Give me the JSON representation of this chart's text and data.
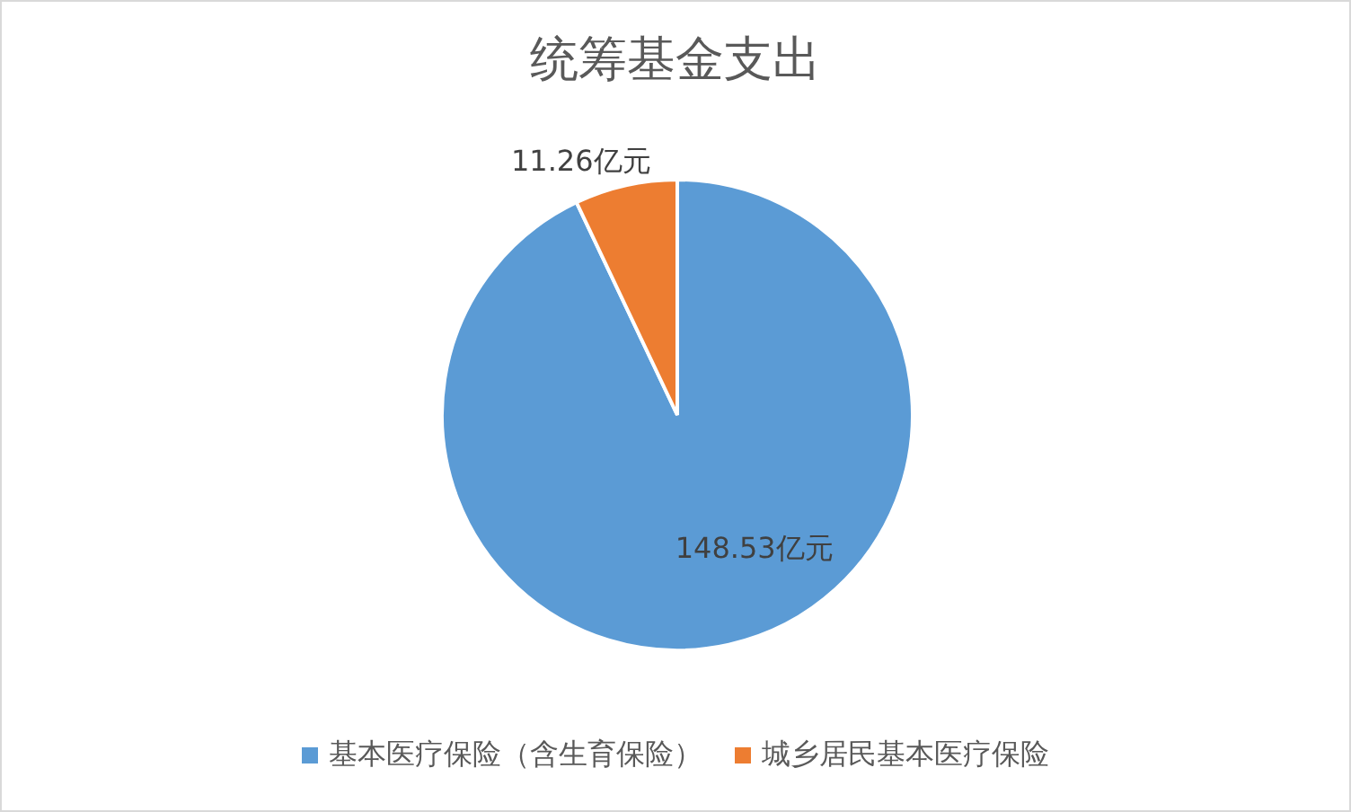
{
  "chart_data": {
    "type": "pie",
    "title": "统筹基金支出",
    "categories": [
      "基本医疗保险（含生育保险）",
      "城乡居民基本医疗保险"
    ],
    "values": [
      148.53,
      11.26
    ],
    "colors": [
      "#5b9bd5",
      "#ed7d31"
    ],
    "value_labels": [
      "148.53亿元",
      "11.26亿元"
    ],
    "legend": "bottom"
  }
}
